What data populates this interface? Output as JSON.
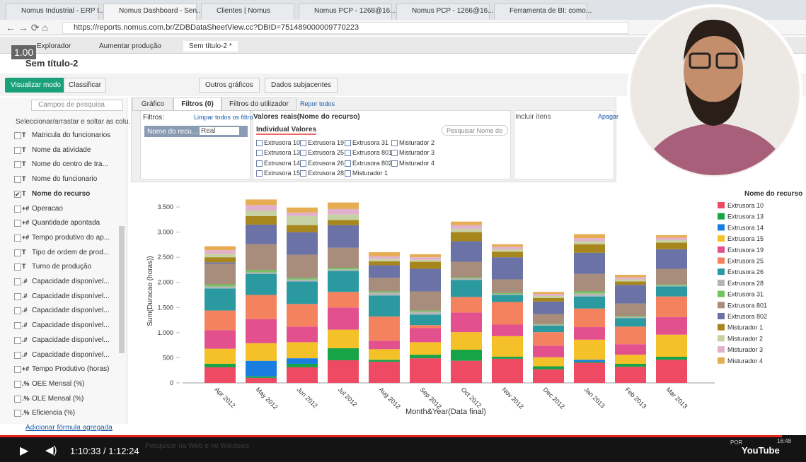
{
  "browser": {
    "tabs": [
      "Nomus Industrial - ERP I...",
      "Nomus Dashboard - Sen...",
      "Clientes | Nomus",
      "Nomus PCP - 1268@16...",
      "Nomus PCP - 1266@16...",
      "Ferramenta de BI: como..."
    ],
    "url": "https://reports.nomus.com.br/ZDBDataSheetView.cc?DBID=751489000009770223"
  },
  "overlay_badge": "1.00",
  "app_tabs": [
    "Explorador",
    "Aumentar produção",
    "Sem título-2 *"
  ],
  "report_title": "Sem título-2",
  "toolbar": {
    "view_mode": "Visualizar modo",
    "sort": "Classificar",
    "other_charts": "Outros gráficos",
    "underlying_data": "Dados subjacentes"
  },
  "fields_panel": {
    "search_placeholder": "Campos de pesquisa",
    "hint": "Seleccionar/arrastar e soltar as colu...",
    "fields": [
      {
        "icon": "T",
        "label": "Matricula do funcionarios",
        "checked": false
      },
      {
        "icon": "T",
        "label": "Nome da atividade",
        "checked": false
      },
      {
        "icon": "T",
        "label": "Nome do centro de tra...",
        "checked": false
      },
      {
        "icon": "T",
        "label": "Nome do funcionario",
        "checked": false
      },
      {
        "icon": "T",
        "label": "Nome do recurso",
        "checked": true
      },
      {
        "icon": "+#",
        "label": "Operacao",
        "checked": false
      },
      {
        "icon": "+#",
        "label": "Quantidade apontada",
        "checked": false
      },
      {
        "icon": "+#",
        "label": "Tempo produtivo do ap...",
        "checked": false
      },
      {
        "icon": "T",
        "label": "Tipo de ordem de prod...",
        "checked": false
      },
      {
        "icon": "T",
        "label": "Turno de produção",
        "checked": false
      },
      {
        "icon": ".#",
        "label": "Capacidade disponível...",
        "checked": false
      },
      {
        "icon": ".#",
        "label": "Capacidade disponível...",
        "checked": false
      },
      {
        "icon": ".#",
        "label": "Capacidade disponível...",
        "checked": false
      },
      {
        "icon": ".#",
        "label": "Capacidade disponível...",
        "checked": false
      },
      {
        "icon": ".#",
        "label": "Capacidade disponível...",
        "checked": false
      },
      {
        "icon": ".#",
        "label": "Capacidade disponível...",
        "checked": false
      },
      {
        "icon": "+#",
        "label": "Tempo Produtivo (horas)",
        "checked": false
      },
      {
        "icon": ".%",
        "label": "OEE Mensal (%)",
        "checked": false
      },
      {
        "icon": ".%",
        "label": "OLE Mensal (%)",
        "checked": false
      },
      {
        "icon": ".%",
        "label": "Eficiencia (%)",
        "checked": false
      }
    ],
    "add_formula": "Adicionar fórmula agregada"
  },
  "filter_panel": {
    "tabs": [
      "Gráfico",
      "Filtros (0)",
      "Filtros do utilizador"
    ],
    "reset_all": "Repor todos",
    "filters_label": "Filtros:",
    "clear_filters": "Limpar todos os filtros",
    "filter_chip": {
      "field": "Nome do recu...",
      "mode": "Real"
    },
    "values_title": "Valores reais(Nome do recurso)",
    "values_tab": "Individual Valores",
    "search_placeholder": "Pesquisar Nome do",
    "values": [
      "Extrusora 10",
      "Extrusora 13",
      "Extrusora 14",
      "Extrusora 15",
      "Extrusora 19",
      "Extrusora 25",
      "Extrusora 26",
      "Extrusora 28",
      "Extrusora 31",
      "Extrusora 801",
      "Extrusora 802",
      "Misturador 1",
      "Misturador 2",
      "Misturador 3",
      "Misturador 4"
    ],
    "include_items": "Incluir itens",
    "clear": "Apagar"
  },
  "chart_data": {
    "type": "bar",
    "stacked": true,
    "x_label": "Month&Year(Data final)",
    "y_label": "Sum(Duracao (horas))",
    "legend_title": "Nome do recurso",
    "categories": [
      "Apr 2012",
      "May 2012",
      "Jun 2012",
      "Jul 2012",
      "Aug 2012",
      "Sep 2012",
      "Oct 2012",
      "Nov 2012",
      "Dec 2012",
      "Jan 2013",
      "Feb 2013",
      "Mar 2013"
    ],
    "ylim": [
      0,
      3700
    ],
    "yticks": [
      0,
      500,
      {
        "value": 1000,
        "label": "1.000"
      },
      {
        "value": 1500,
        "label": "1.500"
      },
      {
        "value": 2000,
        "label": "2.000"
      },
      {
        "value": 2500,
        "label": "2.500"
      },
      {
        "value": 3000,
        "label": "3.000"
      },
      {
        "value": 3500,
        "label": "3.500"
      }
    ],
    "series": [
      {
        "name": "Extrusora 10",
        "color": "#ef4a63",
        "values": [
          310,
          100,
          310,
          450,
          420,
          490,
          440,
          480,
          270,
          400,
          320,
          460
        ]
      },
      {
        "name": "Extrusora 13",
        "color": "#17a348",
        "values": [
          70,
          30,
          70,
          240,
          40,
          70,
          220,
          40,
          60,
          20,
          60,
          60
        ]
      },
      {
        "name": "Extrusora 14",
        "color": "#1a7ee0",
        "values": [
          0,
          310,
          110,
          0,
          0,
          0,
          0,
          0,
          0,
          40,
          0,
          0
        ]
      },
      {
        "name": "Extrusora 15",
        "color": "#f5c128",
        "values": [
          300,
          350,
          320,
          370,
          210,
          250,
          350,
          410,
          180,
          400,
          180,
          440
        ]
      },
      {
        "name": "Extrusora 19",
        "color": "#e2508e",
        "values": [
          370,
          480,
          310,
          440,
          170,
          280,
          390,
          230,
          230,
          250,
          210,
          350
        ]
      },
      {
        "name": "Extrusora 25",
        "color": "#f5825e",
        "values": [
          390,
          480,
          450,
          310,
          480,
          60,
          310,
          450,
          270,
          370,
          350,
          410
        ]
      },
      {
        "name": "Extrusora 26",
        "color": "#2b9aa0",
        "values": [
          440,
          420,
          450,
          420,
          420,
          210,
          340,
          140,
          130,
          240,
          170,
          200
        ]
      },
      {
        "name": "Extrusora 28",
        "color": "#b5b5b5",
        "values": [
          40,
          30,
          40,
          30,
          60,
          60,
          30,
          20,
          20,
          60,
          20,
          20
        ]
      },
      {
        "name": "Extrusora 31",
        "color": "#6fc45c",
        "values": [
          40,
          40,
          30,
          30,
          20,
          20,
          20,
          20,
          10,
          40,
          20,
          20
        ]
      },
      {
        "name": "Extrusora 801",
        "color": "#a88c7c",
        "values": [
          410,
          520,
          460,
          400,
          270,
          380,
          310,
          270,
          200,
          350,
          250,
          310
        ]
      },
      {
        "name": "Extrusora 802",
        "color": "#6b72a6",
        "values": [
          30,
          390,
          450,
          450,
          250,
          450,
          410,
          440,
          250,
          420,
          370,
          390
        ]
      },
      {
        "name": "Misturador 1",
        "color": "#a8861e",
        "values": [
          100,
          170,
          140,
          100,
          80,
          140,
          180,
          110,
          70,
          170,
          70,
          130
        ]
      },
      {
        "name": "Misturador 2",
        "color": "#c6d1a4",
        "values": [
          70,
          110,
          180,
          110,
          50,
          40,
          70,
          50,
          40,
          60,
          40,
          50
        ]
      },
      {
        "name": "Misturador 3",
        "color": "#e0b0cc",
        "values": [
          70,
          110,
          70,
          110,
          50,
          50,
          70,
          50,
          40,
          60,
          40,
          50
        ]
      },
      {
        "name": "Misturador 4",
        "color": "#e6ad53",
        "values": [
          80,
          110,
          100,
          130,
          80,
          60,
          70,
          50,
          40,
          80,
          50,
          50
        ]
      }
    ]
  },
  "video_player": {
    "time": "1:10:33 / 1:12:24"
  },
  "taskbar": {
    "search": "Pesquisar na Web e no Windows",
    "language": "POR",
    "clock": "16:48"
  }
}
